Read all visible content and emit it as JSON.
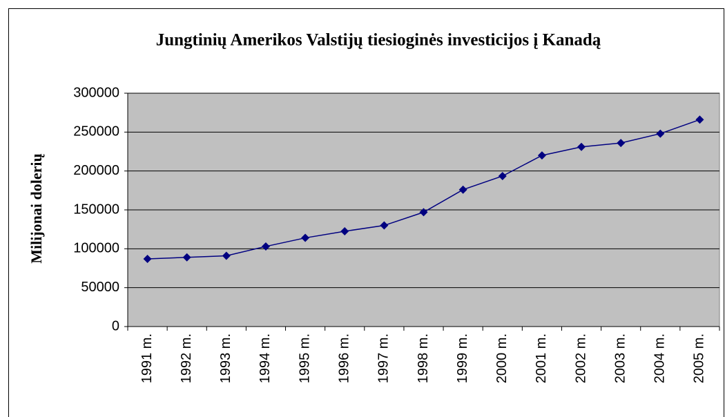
{
  "chart_data": {
    "type": "line",
    "title": "Jungtinių Amerikos Valstijų tiesioginės investicijos į Kanadą",
    "y_label": "Milijonai dolerių",
    "categories": [
      "1991 m.",
      "1992 m.",
      "1993 m.",
      "1994 m.",
      "1995 m.",
      "1996 m.",
      "1997 m.",
      "1998 m.",
      "1999 m.",
      "2000 m.",
      "2001 m.",
      "2002 m.",
      "2003 m.",
      "2004 m.",
      "2005 m."
    ],
    "values": [
      87000,
      89000,
      91000,
      103000,
      114000,
      122500,
      130000,
      147000,
      176000,
      193500,
      220000,
      231000,
      236000,
      248000,
      266000
    ],
    "color": "#000080",
    "plot_background": "#c0c0c0",
    "ylim": [
      0,
      300000
    ],
    "yticks": [
      0,
      50000,
      100000,
      150000,
      200000,
      250000,
      300000
    ],
    "grid": true
  }
}
